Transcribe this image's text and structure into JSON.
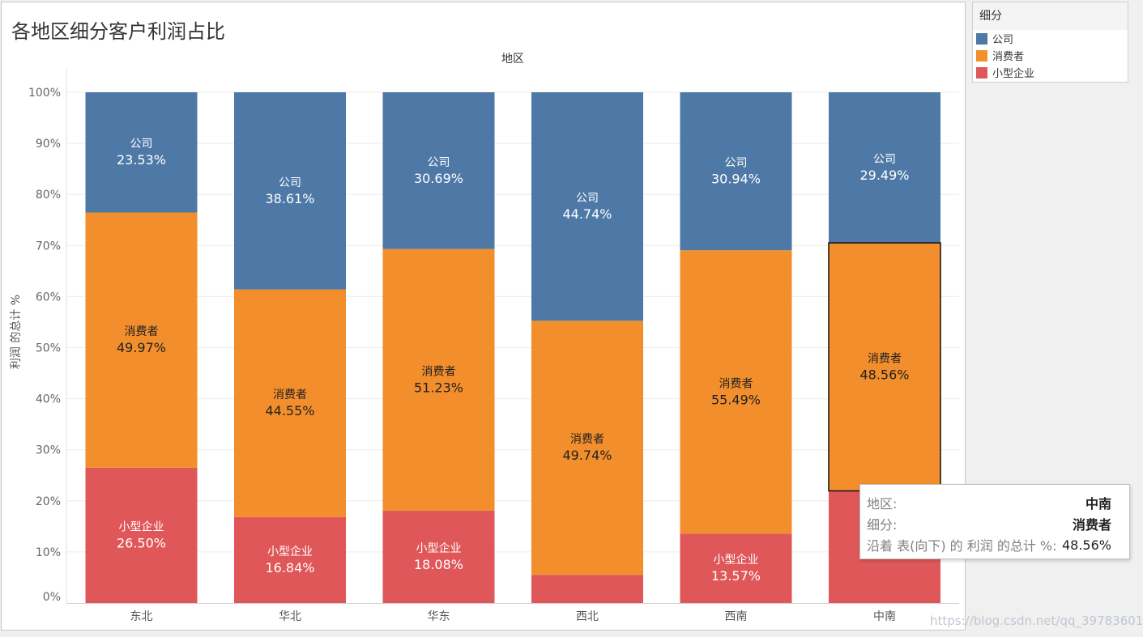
{
  "chart_data": {
    "type": "stacked-bar-100",
    "title": "各地区细分客户利润占比",
    "x_header": "地区",
    "ylabel": "利润 的总计 %",
    "ylim": [
      0,
      100
    ],
    "y_ticks": [
      "0%",
      "10%",
      "20%",
      "30%",
      "40%",
      "50%",
      "60%",
      "70%",
      "80%",
      "90%",
      "100%"
    ],
    "categories": [
      "东北",
      "华北",
      "华东",
      "西北",
      "西南",
      "中南"
    ],
    "series": [
      {
        "name": "小型企业",
        "color": "#e05759",
        "label_color": "#ffffff",
        "values": [
          26.5,
          16.84,
          18.08,
          5.52,
          13.57,
          21.95
        ],
        "labels": [
          "26.50%",
          "16.84%",
          "18.08%",
          null,
          "13.57%",
          null
        ]
      },
      {
        "name": "消费者",
        "color": "#f28e2b",
        "label_color": "#222222",
        "values": [
          49.97,
          44.55,
          51.23,
          49.74,
          55.49,
          48.56
        ],
        "labels": [
          "49.97%",
          "44.55%",
          "51.23%",
          "49.74%",
          "55.49%",
          "48.56%"
        ]
      },
      {
        "name": "公司",
        "color": "#4e79a7",
        "label_color": "#ffffff",
        "values": [
          23.53,
          38.61,
          30.69,
          44.74,
          30.94,
          29.49
        ],
        "labels": [
          "23.53%",
          "38.61%",
          "30.69%",
          "44.74%",
          "30.94%",
          "29.49%"
        ]
      }
    ],
    "highlight": {
      "category": "中南",
      "series": "消费者"
    },
    "legend_position": "top-right"
  },
  "legend": {
    "title": "细分",
    "items": [
      {
        "label": "公司",
        "color": "#4e79a7"
      },
      {
        "label": "消费者",
        "color": "#f28e2b"
      },
      {
        "label": "小型企业",
        "color": "#e05759"
      }
    ]
  },
  "tooltip": {
    "rows": [
      {
        "label": "地区:",
        "value": "中南"
      },
      {
        "label": "细分:",
        "value": "消费者"
      },
      {
        "label": "沿着 表(向下) 的 利润 的总计 %:",
        "value": "48.56%"
      }
    ]
  },
  "watermark": "https://blog.csdn.net/qq_39783601"
}
